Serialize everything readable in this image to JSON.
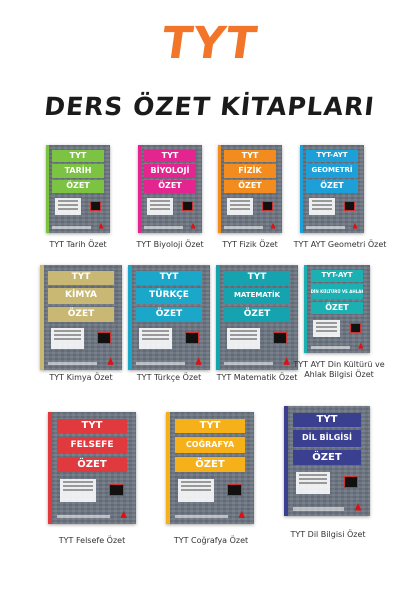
{
  "header": {
    "brand": "TYT",
    "title": "DERS ÖZET KİTAPLARI"
  },
  "books": [
    {
      "tyt": "TYT",
      "subject": "TARİH",
      "ozet": "ÖZET",
      "caption": "TYT Tarih Özet",
      "color": "#7cc243"
    },
    {
      "tyt": "TYT",
      "subject": "BİYOLOJİ",
      "ozet": "ÖZET",
      "caption": "TYT Biyoloji Özet",
      "color": "#e4248f"
    },
    {
      "tyt": "TYT",
      "subject": "FİZİK",
      "ozet": "ÖZET",
      "caption": "TYT Fizik Özet",
      "color": "#f28c1e"
    },
    {
      "tyt": "TYT-AYT",
      "subject": "GEOMETRİ",
      "ozet": "ÖZET",
      "caption": "TYT AYT Geometri Özet",
      "color": "#1d9fd8"
    },
    {
      "tyt": "TYT",
      "subject": "KİMYA",
      "ozet": "ÖZET",
      "caption": "TYT Kimya Özet",
      "color": "#c8b873"
    },
    {
      "tyt": "TYT",
      "subject": "TÜRKÇE",
      "ozet": "ÖZET",
      "caption": "TYT Türkçe Özet",
      "color": "#1aa7c9"
    },
    {
      "tyt": "TYT",
      "subject": "MATEMATİK",
      "ozet": "ÖZET",
      "caption": "TYT Matematik Özet",
      "color": "#16a3b0"
    },
    {
      "tyt": "TYT-AYT",
      "subject": "DİN KÜLTÜRÜ VE AHLAK BİLGİSİ",
      "ozet": "ÖZET",
      "caption": "TYT AYT Din Kültürü ve Ahlak Bilgisi Özet",
      "color": "#1cb0b3"
    },
    {
      "tyt": "TYT",
      "subject": "FELSEFE",
      "ozet": "ÖZET",
      "caption": "TYT Felsefe Özet",
      "color": "#e03a3f"
    },
    {
      "tyt": "TYT",
      "subject": "COĞRAFYA",
      "ozet": "ÖZET",
      "caption": "TYT Coğrafya Özet",
      "color": "#f6b11a"
    },
    {
      "tyt": "TYT",
      "subject": "DİL BİLGİSİ",
      "ozet": "ÖZET",
      "caption": "TYT Dil Bilgisi Özet",
      "color": "#3a3f8f"
    }
  ]
}
